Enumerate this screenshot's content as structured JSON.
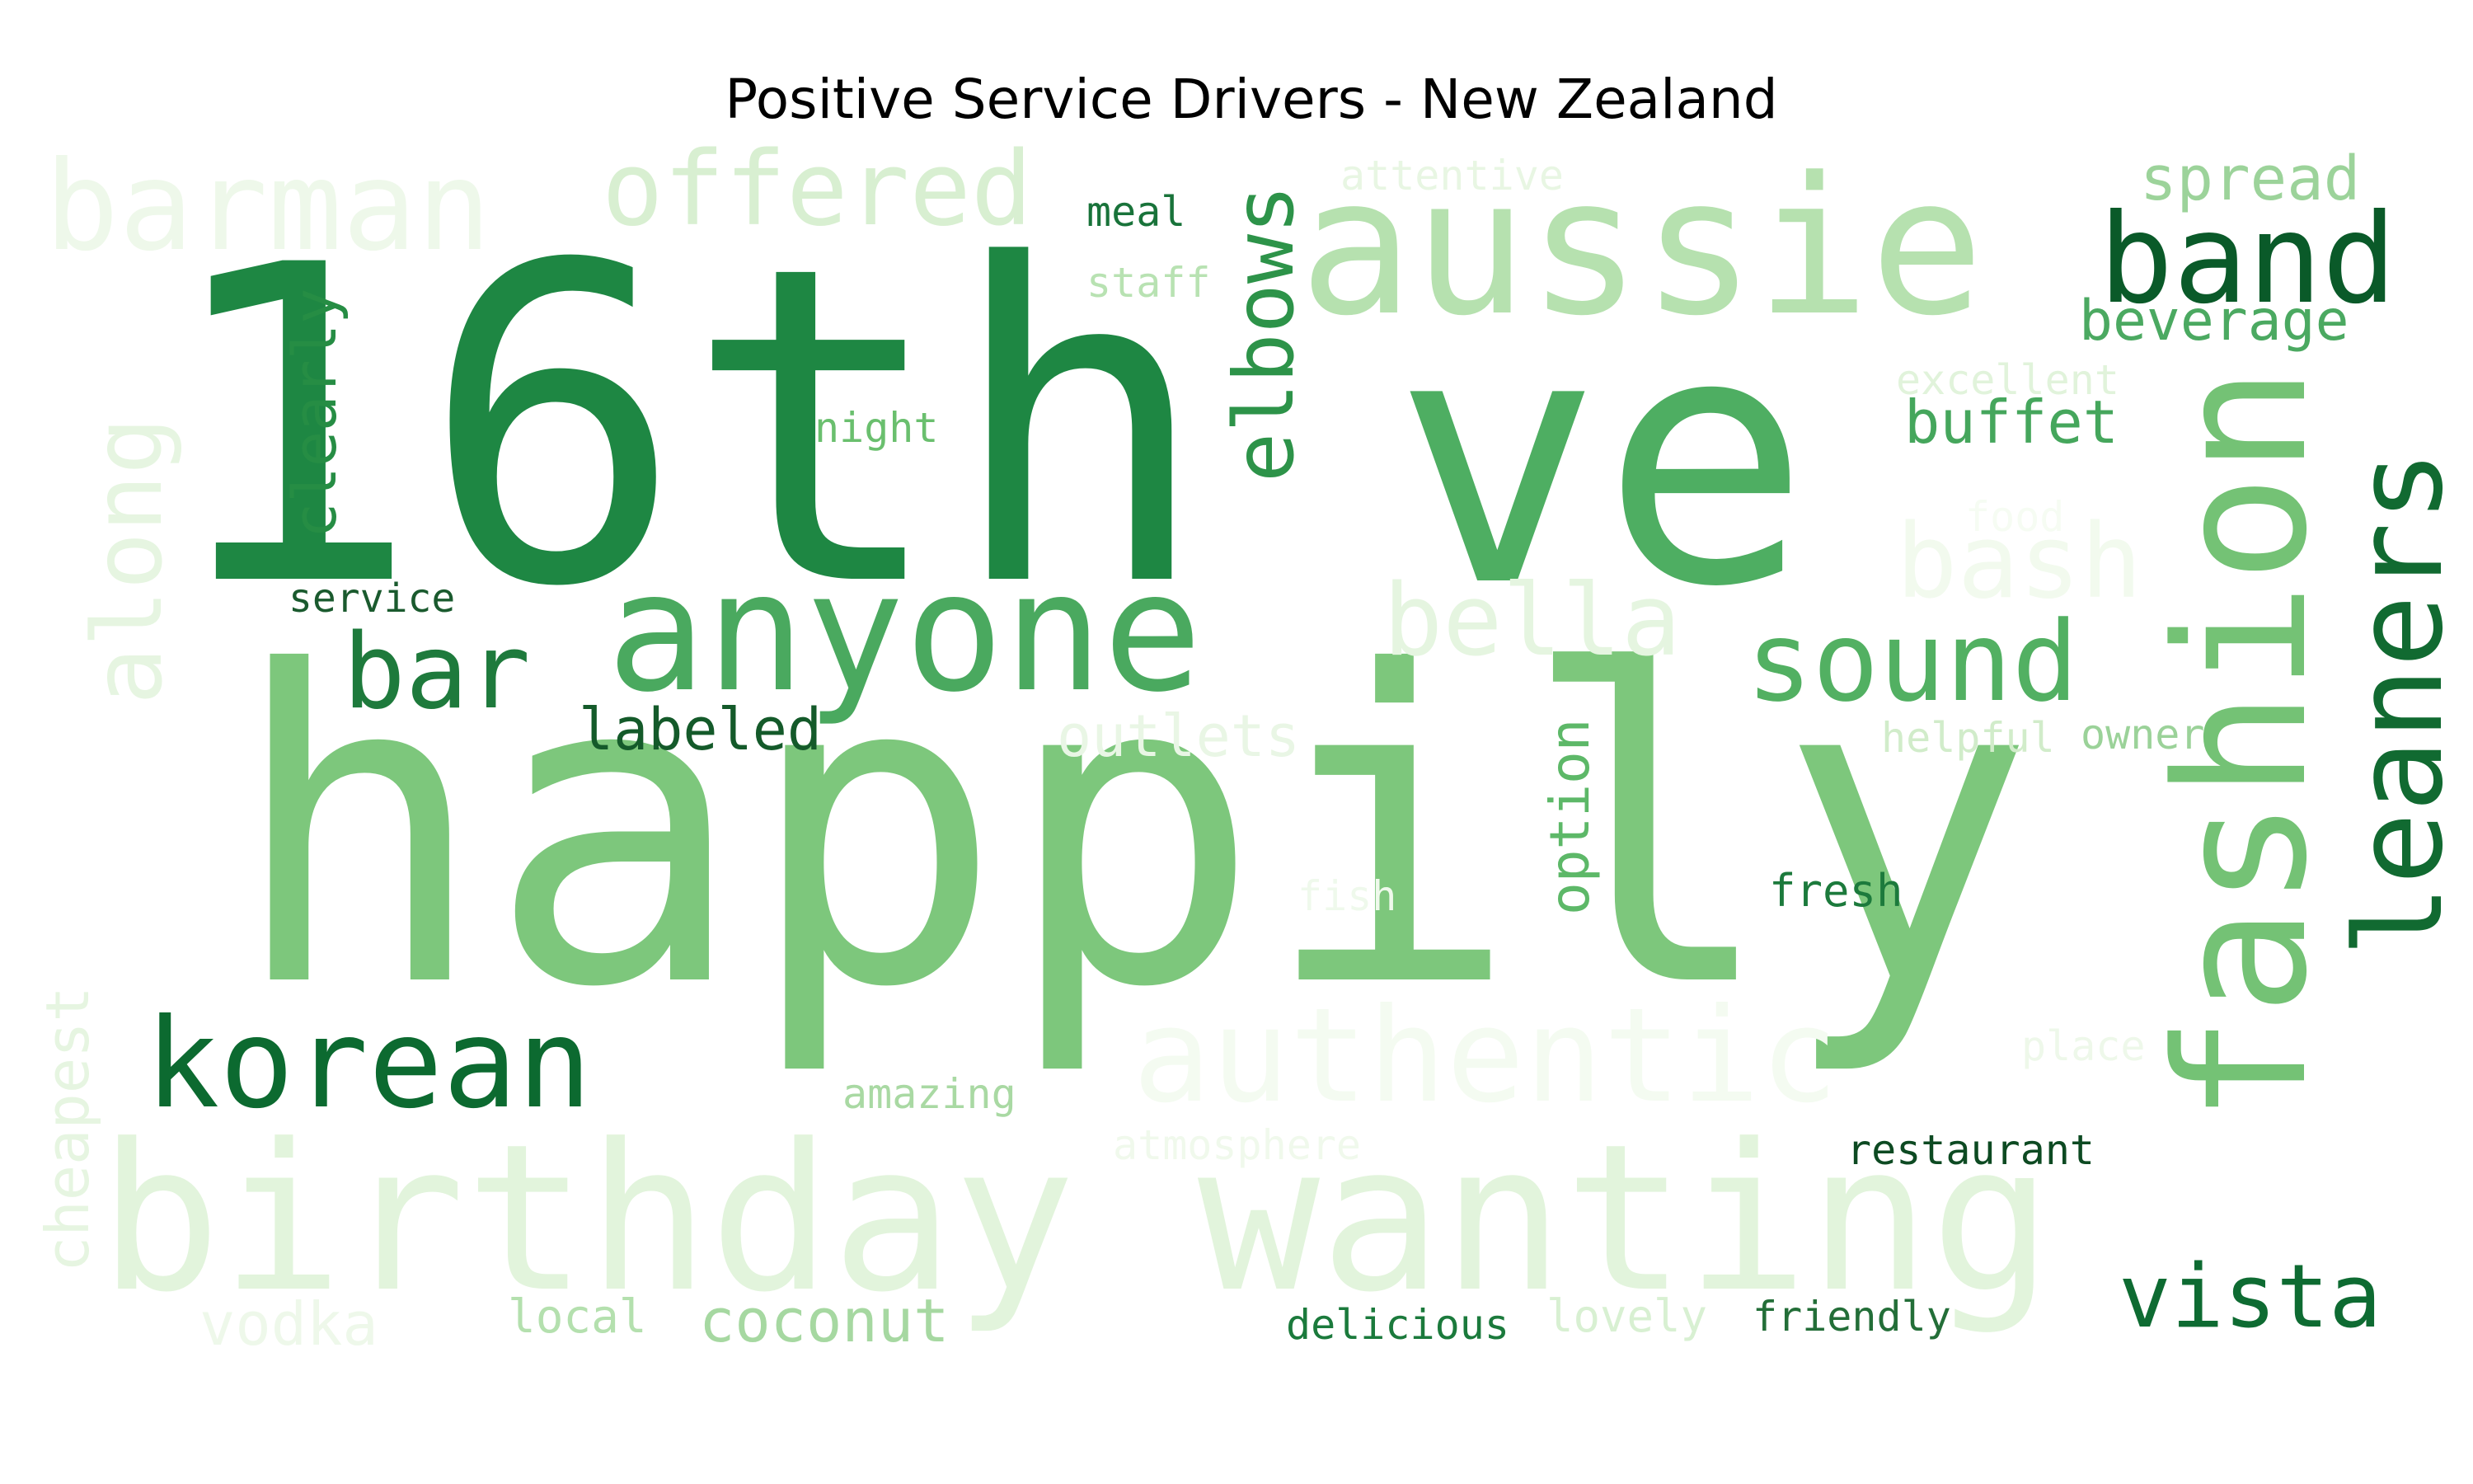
{
  "title": "Positive Service Drivers - New Zealand",
  "words": [
    {
      "text": "16th",
      "color": "#1e8743"
    },
    {
      "text": "ve",
      "color": "#4eae62"
    },
    {
      "text": "happily",
      "color": "#7dc77c"
    },
    {
      "text": "aussie",
      "color": "#b6e1af"
    },
    {
      "text": "anyone",
      "color": "#4aa95f"
    },
    {
      "text": "birthday wanting",
      "color": "#e2f4dc"
    },
    {
      "text": "fashion",
      "color": "#74c275"
    },
    {
      "text": "leaners",
      "color": "#116a31"
    },
    {
      "text": "korean",
      "color": "#0c6a30"
    },
    {
      "text": "barman",
      "color": "#eef8ea"
    },
    {
      "text": "offered",
      "color": "#d8efd1"
    },
    {
      "text": "band",
      "color": "#0a5a29"
    },
    {
      "text": "elbows",
      "color": "#2d9349"
    },
    {
      "text": "bar",
      "color": "#1e7a3c"
    },
    {
      "text": "sound",
      "color": "#52b062"
    },
    {
      "text": "authentic",
      "color": "#f4fbf1"
    },
    {
      "text": "bella",
      "color": "#e5f5e0"
    },
    {
      "text": "along",
      "color": "#e6f5e1"
    },
    {
      "text": "vista",
      "color": "#0e6b32"
    },
    {
      "text": "bash",
      "color": "#f2faee"
    },
    {
      "text": "clearly",
      "color": "#268d44"
    },
    {
      "text": "spread",
      "color": "#9cd39a"
    },
    {
      "text": "beverage",
      "color": "#4ba961"
    },
    {
      "text": "buffet",
      "color": "#45a65c"
    },
    {
      "text": "labeled",
      "color": "#145a2a"
    },
    {
      "text": "outlets",
      "color": "#e9f6e5"
    },
    {
      "text": "option",
      "color": "#5db868"
    },
    {
      "text": "coconut",
      "color": "#a6d8a1"
    },
    {
      "text": "cheapest",
      "color": "#e6f5e1"
    },
    {
      "text": "vodka",
      "color": "#eef8ea"
    },
    {
      "text": "local",
      "color": "#b4e0ae"
    },
    {
      "text": "delicious",
      "color": "#1b7a3c"
    },
    {
      "text": "lovely",
      "color": "#d8f0d2"
    },
    {
      "text": "friendly",
      "color": "#236e38"
    },
    {
      "text": "restaurant",
      "color": "#0d4a22"
    },
    {
      "text": "fresh",
      "color": "#1c7a3c"
    },
    {
      "text": "amazing",
      "color": "#a9d9a3"
    },
    {
      "text": "atmosphere",
      "color": "#f0f9ec"
    },
    {
      "text": "place",
      "color": "#eef8ea"
    },
    {
      "text": "fish",
      "color": "#eff9ec"
    },
    {
      "text": "helpful",
      "color": "#d1ecca"
    },
    {
      "text": "owner",
      "color": "#9bd299"
    },
    {
      "text": "food",
      "color": "#f6fcf3"
    },
    {
      "text": "excellent",
      "color": "#e1f3db"
    },
    {
      "text": "night",
      "color": "#6abf6e"
    },
    {
      "text": "service",
      "color": "#1a5a2e"
    },
    {
      "text": "meal",
      "color": "#19733a"
    },
    {
      "text": "staff",
      "color": "#b8e2b2"
    },
    {
      "text": "attentive",
      "color": "#e8f6e3"
    }
  ]
}
